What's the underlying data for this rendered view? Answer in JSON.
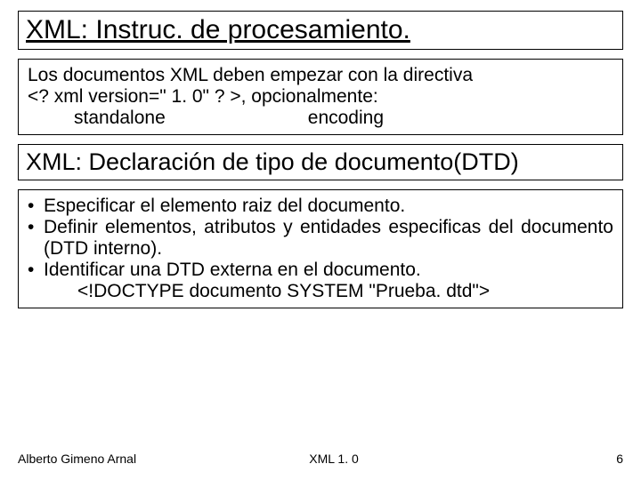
{
  "colors": {
    "page_bg": "#ffffff",
    "text": "#000000",
    "border": "#000000"
  },
  "title1": {
    "text": "XML: Instruc. de procesamiento.",
    "fontsize": 30,
    "underline": true
  },
  "body1": {
    "fontsize": 21,
    "line1": "Los documentos XML deben empezar con la directiva",
    "line2": "<? xml version=\" 1. 0\" ? >, opcionalmente:",
    "opt1": "standalone",
    "opt2": "encoding"
  },
  "title2": {
    "text": "XML: Declaración de tipo de documento(DTD)",
    "fontsize": 27
  },
  "bullets": {
    "fontsize": 21,
    "items": [
      {
        "text": "Especificar el elemento raiz del documento.",
        "justify": false
      },
      {
        "text": "Definir elementos, atributos y entidades especificas del documento (DTD interno).",
        "justify": true
      },
      {
        "text": "Identificar una DTD externa en el documento.",
        "justify": false
      }
    ],
    "doctype": "<!DOCTYPE documento SYSTEM \"Prueba. dtd\">"
  },
  "footer": {
    "author": "Alberto Gimeno Arnal",
    "center": "XML 1. 0",
    "page": "6",
    "fontsize": 14
  }
}
